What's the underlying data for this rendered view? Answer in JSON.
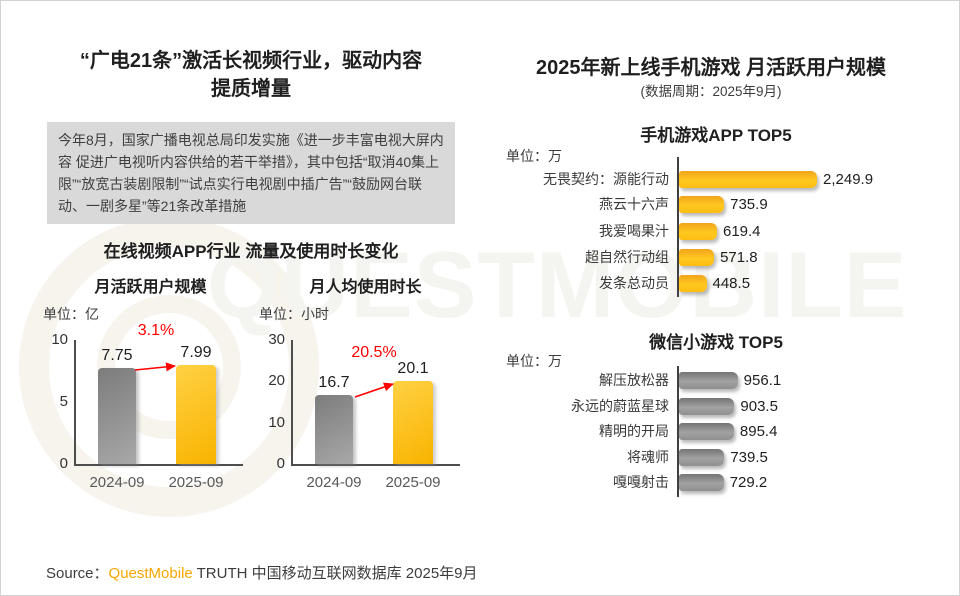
{
  "page": {
    "watermark": "QUESTMOBILE"
  },
  "left": {
    "title_lines": [
      "“广电21条”激活长视频行业，驱动内容",
      "提质增量"
    ],
    "policy_text": "今年8月，国家广播电视总局印发实施《进一步丰富电视大屏内容 促进广电视听内容供给的若干举措》，其中包括“取消40集上限”“放宽古装剧限制”“试点实行电视剧中插广告”“鼓励网台联动、一剧多星”等21条改革措施",
    "section_title": "在线视频APP行业 流量及使用时长变化"
  },
  "right": {
    "title": "2025年新上线手机游戏 月活跃用户规模",
    "subtitle": "(数据周期：2025年9月)"
  },
  "footer": {
    "source_label": "Source：",
    "brand": "QuestMobile",
    "rest": " TRUTH 中国移动互联网数据库 2025年9月"
  },
  "colors": {
    "accent_yellow": "#FFC41E",
    "bar_gray": "#8F8F8F",
    "growth_red": "#FE0000",
    "brand_orange": "#F7A600",
    "box_gray": "#D9D9D9"
  },
  "chart_data": [
    {
      "id": "online-video-mau",
      "type": "bar",
      "title": "月活跃用户规模",
      "unit": "单位：亿",
      "categories": [
        "2024-09",
        "2025-09"
      ],
      "values": [
        7.75,
        7.99
      ],
      "value_labels": [
        "7.75",
        "7.99"
      ],
      "growth_label": "3.1%",
      "ylim": [
        0,
        10
      ],
      "yticks": [
        0,
        5,
        10
      ],
      "grid": false
    },
    {
      "id": "online-video-duration",
      "type": "bar",
      "title": "月人均使用时长",
      "unit": "单位：小时",
      "categories": [
        "2024-09",
        "2025-09"
      ],
      "values": [
        16.7,
        20.1
      ],
      "value_labels": [
        "16.7",
        "20.1"
      ],
      "growth_label": "20.5%",
      "ylim": [
        0,
        30
      ],
      "yticks": [
        0,
        10,
        20,
        30
      ],
      "grid": false
    },
    {
      "id": "mobile-game-app-top5",
      "type": "bar",
      "orientation": "horizontal",
      "title": "手机游戏APP TOP5",
      "unit": "单位：万",
      "categories": [
        "无畏契约：源能行动",
        "燕云十六声",
        "我爱喝果汁",
        "超自然行动组",
        "发条总动员"
      ],
      "values": [
        2249.9,
        735.9,
        619.4,
        571.8,
        448.5
      ],
      "value_labels": [
        "2,249.9",
        "735.9",
        "619.4",
        "571.8",
        "448.5"
      ],
      "xmax": 2249.9,
      "bar_color": "yellow"
    },
    {
      "id": "wechat-minigame-top5",
      "type": "bar",
      "orientation": "horizontal",
      "title": "微信小游戏 TOP5",
      "unit": "单位：万",
      "categories": [
        "解压放松器",
        "永远的蔚蓝星球",
        "精明的开局",
        "将魂师",
        "嘎嘎射击"
      ],
      "values": [
        956.1,
        903.5,
        895.4,
        739.5,
        729.2
      ],
      "value_labels": [
        "956.1",
        "903.5",
        "895.4",
        "739.5",
        "729.2"
      ],
      "xmax": 2249.9,
      "bar_color": "gray"
    }
  ]
}
